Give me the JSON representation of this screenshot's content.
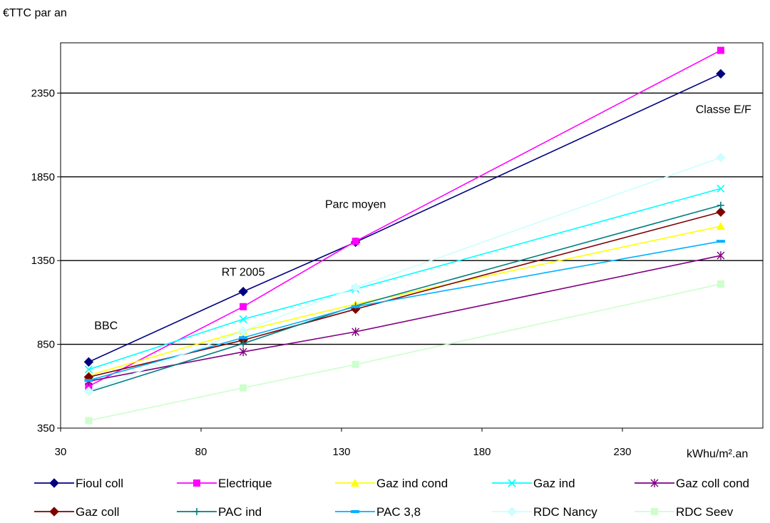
{
  "chart_data": {
    "type": "line",
    "ylabel": "€TTC par an",
    "xlabel": "kWhu/m².an",
    "xlim": [
      30,
      280
    ],
    "ylim": [
      350,
      2650
    ],
    "xticks": [
      30,
      80,
      130,
      180,
      230
    ],
    "yticks": [
      350,
      850,
      1350,
      1850,
      2350
    ],
    "grid": "horizontal",
    "legend_position": "bottom",
    "x": [
      40,
      95,
      135,
      265
    ],
    "series": [
      {
        "name": "Fioul coll",
        "color": "#000080",
        "marker": "diamond",
        "values": [
          745,
          1165,
          1460,
          2465
        ]
      },
      {
        "name": "Electrique",
        "color": "#ff00ff",
        "marker": "square",
        "values": [
          600,
          1075,
          1465,
          2605
        ]
      },
      {
        "name": "Gaz ind cond",
        "color": "#ffff00",
        "marker": "triangle",
        "values": [
          665,
          930,
          1090,
          1555
        ]
      },
      {
        "name": "Gaz ind",
        "color": "#00ffff",
        "marker": "x",
        "values": [
          700,
          1000,
          1180,
          1780
        ]
      },
      {
        "name": "Gaz coll cond",
        "color": "#800080",
        "marker": "star",
        "values": [
          630,
          805,
          925,
          1380
        ]
      },
      {
        "name": "Gaz coll",
        "color": "#800000",
        "marker": "diamond",
        "values": [
          655,
          875,
          1060,
          1640
        ]
      },
      {
        "name": "PAC ind",
        "color": "#008080",
        "marker": "plus",
        "values": [
          565,
          855,
          1080,
          1680
        ]
      },
      {
        "name": "PAC 3,8",
        "color": "#00b0ff",
        "marker": "dash",
        "values": [
          635,
          890,
          1075,
          1465
        ]
      },
      {
        "name": "RDC Nancy",
        "color": "#ccffff",
        "marker": "diamond",
        "values": [
          570,
          930,
          1190,
          1965
        ]
      },
      {
        "name": "RDC Seev",
        "color": "#ccffcc",
        "marker": "square",
        "values": [
          395,
          590,
          730,
          1210
        ]
      }
    ],
    "annotations": [
      {
        "text": "BBC",
        "x": 42,
        "y": 940
      },
      {
        "text": "RT 2005",
        "x": 95,
        "y": 1260
      },
      {
        "text": "Parc moyen",
        "x": 135,
        "y": 1665
      },
      {
        "text": "Classe E/F",
        "x": 266,
        "y": 2230
      }
    ]
  }
}
